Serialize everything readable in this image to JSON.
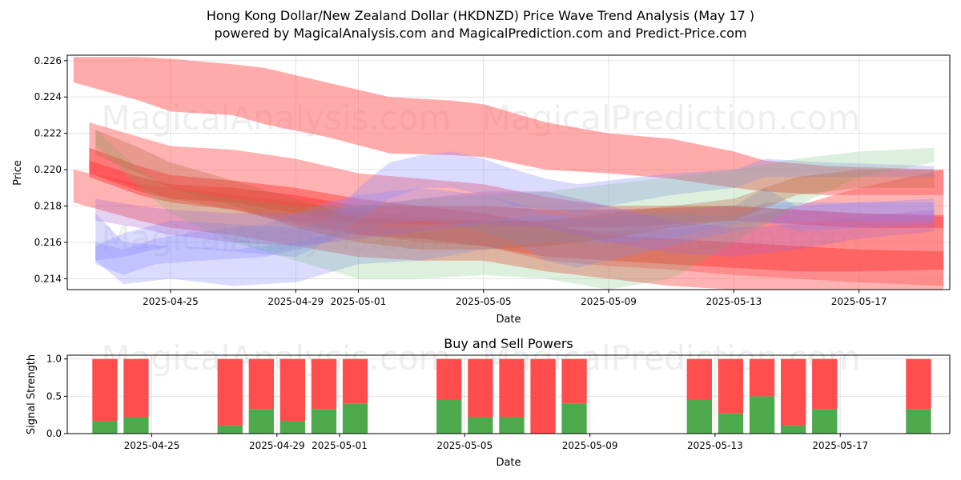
{
  "chart_data": [
    {
      "type": "area",
      "title_line1": "Hong Kong Dollar/New Zealand Dollar (HKDNZD) Price Wave Trend Analysis (May 17 )",
      "title_line2": "powered by MagicalAnalysis.com and MagicalPrediction.com and Predict-Price.com",
      "xlabel": "Date",
      "ylabel": "Price",
      "ylim": [
        0.2134,
        0.2263
      ],
      "x_range_days": [
        -3.3,
        24.9
      ],
      "x_origin_date": "2025-04-25",
      "x_ticks": [
        {
          "day": 0,
          "label": "2025-04-25"
        },
        {
          "day": 4,
          "label": "2025-04-29"
        },
        {
          "day": 6,
          "label": "2025-05-01"
        },
        {
          "day": 10,
          "label": "2025-05-05"
        },
        {
          "day": 14,
          "label": "2025-05-09"
        },
        {
          "day": 18,
          "label": "2025-05-13"
        },
        {
          "day": 22,
          "label": "2025-05-17"
        }
      ],
      "y_ticks": [
        {
          "value": 0.214,
          "label": "0.214"
        },
        {
          "value": 0.216,
          "label": "0.216"
        },
        {
          "value": 0.218,
          "label": "0.218"
        },
        {
          "value": 0.22,
          "label": "0.220"
        },
        {
          "value": 0.222,
          "label": "0.222"
        },
        {
          "value": 0.224,
          "label": "0.224"
        },
        {
          "value": 0.226,
          "label": "0.226"
        }
      ],
      "watermarks": [
        "MagicalAnalysis.com",
        "MagicalPrediction.com"
      ],
      "bands": [
        {
          "color": "#ff6666",
          "opacity": 0.55,
          "x": [
            -3.1,
            -1,
            0,
            2,
            3,
            5,
            7,
            9,
            10,
            12,
            14,
            16,
            18,
            19,
            21,
            24.7
          ],
          "upper": [
            0.2262,
            0.2262,
            0.2261,
            0.2258,
            0.2256,
            0.2248,
            0.224,
            0.2238,
            0.2236,
            0.2226,
            0.222,
            0.2217,
            0.221,
            0.2205,
            0.2202,
            0.22
          ],
          "lower": [
            0.2248,
            0.2238,
            0.2232,
            0.223,
            0.2225,
            0.2218,
            0.2209,
            0.2208,
            0.2207,
            0.22,
            0.2198,
            0.2195,
            0.219,
            0.2188,
            0.2186,
            0.2186
          ]
        },
        {
          "color": "#ff6666",
          "opacity": 0.5,
          "x": [
            -2.6,
            -1,
            0,
            2,
            4,
            6,
            8,
            10,
            12,
            14,
            16,
            18,
            20,
            22,
            24.7
          ],
          "upper": [
            0.2226,
            0.2218,
            0.2213,
            0.2211,
            0.2206,
            0.2198,
            0.2195,
            0.2192,
            0.2185,
            0.218,
            0.218,
            0.218,
            0.2178,
            0.2176,
            0.2174
          ],
          "lower": [
            0.2198,
            0.219,
            0.2184,
            0.2178,
            0.2172,
            0.2165,
            0.216,
            0.2158,
            0.215,
            0.2147,
            0.2145,
            0.2142,
            0.214,
            0.2138,
            0.2136
          ]
        },
        {
          "color": "#ff6666",
          "opacity": 0.5,
          "x": [
            -3.1,
            -1,
            0,
            2,
            4,
            6,
            8,
            10,
            12,
            14,
            16,
            18,
            20,
            22,
            24.7
          ],
          "upper": [
            0.22,
            0.2192,
            0.219,
            0.2186,
            0.2182,
            0.2178,
            0.2174,
            0.2172,
            0.2168,
            0.2166,
            0.2167,
            0.2172,
            0.218,
            0.219,
            0.22
          ],
          "lower": [
            0.2182,
            0.2172,
            0.2168,
            0.2164,
            0.2158,
            0.2152,
            0.215,
            0.215,
            0.2144,
            0.214,
            0.2136,
            0.2134,
            0.2133,
            0.2133,
            0.2133
          ]
        },
        {
          "color": "#ff3333",
          "opacity": 0.45,
          "x": [
            -2.6,
            -1,
            0,
            2,
            4,
            6,
            8,
            10,
            12,
            14,
            16,
            18,
            20,
            22,
            24.7
          ],
          "upper": [
            0.2212,
            0.2202,
            0.2197,
            0.2194,
            0.219,
            0.2184,
            0.218,
            0.2176,
            0.217,
            0.2164,
            0.2162,
            0.216,
            0.2158,
            0.2156,
            0.2155
          ],
          "lower": [
            0.2196,
            0.2186,
            0.2182,
            0.2178,
            0.217,
            0.2164,
            0.2162,
            0.2158,
            0.2152,
            0.215,
            0.2148,
            0.2146,
            0.2144,
            0.2144,
            0.2145
          ]
        },
        {
          "color": "#ff3333",
          "opacity": 0.45,
          "x": [
            -2.6,
            -1,
            0,
            2,
            4,
            6,
            8,
            10,
            12,
            14,
            16,
            18,
            20,
            22,
            24.7
          ],
          "upper": [
            0.2205,
            0.2196,
            0.2192,
            0.219,
            0.2186,
            0.218,
            0.218,
            0.218,
            0.2178,
            0.2178,
            0.2179,
            0.218,
            0.2178,
            0.2176,
            0.2175
          ],
          "lower": [
            0.2198,
            0.2188,
            0.2184,
            0.2182,
            0.2176,
            0.217,
            0.217,
            0.217,
            0.2168,
            0.2168,
            0.217,
            0.2172,
            0.217,
            0.2168,
            0.2168
          ]
        },
        {
          "color": "#8888ff",
          "opacity": 0.3,
          "x": [
            -2.4,
            -1.5,
            0,
            2,
            4,
            5,
            6,
            7,
            8,
            9,
            10,
            11,
            12,
            13,
            14,
            16,
            18,
            19,
            21,
            24.4
          ],
          "upper": [
            0.2158,
            0.2165,
            0.2172,
            0.217,
            0.2168,
            0.2172,
            0.219,
            0.2204,
            0.2208,
            0.221,
            0.2206,
            0.22,
            0.2195,
            0.2192,
            0.2194,
            0.2198,
            0.22,
            0.2206,
            0.2204,
            0.2202
          ],
          "lower": [
            0.215,
            0.2152,
            0.2158,
            0.2155,
            0.2152,
            0.216,
            0.2172,
            0.2184,
            0.219,
            0.219,
            0.2186,
            0.218,
            0.2178,
            0.2176,
            0.218,
            0.2186,
            0.219,
            0.2196,
            0.2196,
            0.2196
          ]
        },
        {
          "color": "#8888ff",
          "opacity": 0.3,
          "x": [
            -2.4,
            -1.5,
            -0.5,
            1,
            3,
            5,
            6,
            7,
            8,
            9,
            10,
            11,
            12,
            13,
            14,
            16,
            18,
            19,
            21,
            24.4
          ],
          "upper": [
            0.216,
            0.2156,
            0.2162,
            0.2166,
            0.217,
            0.2182,
            0.2186,
            0.2188,
            0.219,
            0.2188,
            0.2186,
            0.2182,
            0.2176,
            0.2172,
            0.2174,
            0.2176,
            0.2174,
            0.2182,
            0.2182,
            0.2182
          ],
          "lower": [
            0.2148,
            0.2142,
            0.2148,
            0.215,
            0.2152,
            0.216,
            0.2166,
            0.217,
            0.2172,
            0.217,
            0.2166,
            0.216,
            0.215,
            0.2146,
            0.215,
            0.2158,
            0.2166,
            0.217,
            0.2172,
            0.2172
          ]
        },
        {
          "color": "#8888ff",
          "opacity": 0.3,
          "x": [
            -2.4,
            -1.5,
            0,
            2,
            4,
            6,
            8,
            10,
            12,
            14,
            16,
            18,
            19,
            20,
            22,
            24.4
          ],
          "upper": [
            0.2176,
            0.216,
            0.2158,
            0.2156,
            0.216,
            0.2168,
            0.2168,
            0.2172,
            0.2175,
            0.2178,
            0.2178,
            0.218,
            0.219,
            0.218,
            0.2182,
            0.2184
          ],
          "lower": [
            0.215,
            0.2137,
            0.214,
            0.2136,
            0.2138,
            0.2148,
            0.215,
            0.2156,
            0.216,
            0.216,
            0.2162,
            0.217,
            0.2172,
            0.2166,
            0.2168,
            0.217
          ]
        },
        {
          "color": "#66bb66",
          "opacity": 0.22,
          "x": [
            -2.4,
            -1,
            0,
            2,
            4,
            6,
            8,
            10,
            12,
            14,
            16,
            18,
            20,
            22,
            24.4
          ],
          "upper": [
            0.2222,
            0.22,
            0.219,
            0.2184,
            0.218,
            0.218,
            0.2184,
            0.2186,
            0.2188,
            0.2192,
            0.2196,
            0.22,
            0.2206,
            0.221,
            0.2212
          ],
          "lower": [
            0.2214,
            0.219,
            0.2176,
            0.216,
            0.215,
            0.214,
            0.214,
            0.2142,
            0.214,
            0.2134,
            0.214,
            0.216,
            0.218,
            0.2196,
            0.2204
          ]
        },
        {
          "color": "#bb6644",
          "opacity": 0.32,
          "x": [
            -2.4,
            -1,
            0,
            2,
            4,
            6,
            8,
            10,
            12,
            14,
            16,
            18,
            20,
            22,
            24.4
          ],
          "upper": [
            0.2222,
            0.2212,
            0.2204,
            0.2194,
            0.2184,
            0.2174,
            0.2172,
            0.2172,
            0.2172,
            0.2176,
            0.218,
            0.2184,
            0.2196,
            0.22,
            0.22
          ],
          "lower": [
            0.2208,
            0.2198,
            0.219,
            0.218,
            0.2168,
            0.216,
            0.2156,
            0.2156,
            0.2158,
            0.2162,
            0.2168,
            0.2172,
            0.2186,
            0.219,
            0.219
          ]
        },
        {
          "color": "#aa66cc",
          "opacity": 0.3,
          "x": [
            -2.4,
            -1,
            0,
            2,
            4,
            6,
            8,
            10,
            12,
            14,
            16,
            18,
            20,
            22,
            24.4
          ],
          "upper": [
            0.2184,
            0.218,
            0.2178,
            0.2176,
            0.2176,
            0.218,
            0.2184,
            0.2188,
            0.2188,
            0.218,
            0.2172,
            0.2168,
            0.217,
            0.2174,
            0.2178
          ],
          "lower": [
            0.2172,
            0.2168,
            0.2164,
            0.216,
            0.2158,
            0.2162,
            0.2166,
            0.217,
            0.2168,
            0.216,
            0.2154,
            0.2152,
            0.2156,
            0.2162,
            0.2166
          ]
        }
      ]
    },
    {
      "type": "bar",
      "title": "Buy and Sell Powers",
      "xlabel": "Date",
      "ylabel": "Signal Strength",
      "ylim": [
        0,
        1.05
      ],
      "x_range_days": [
        -3.3,
        24.9
      ],
      "y_ticks": [
        {
          "value": 0.0,
          "label": "0.0"
        },
        {
          "value": 0.5,
          "label": "0.5"
        },
        {
          "value": 1.0,
          "label": "1.0"
        }
      ],
      "x_ticks": [
        {
          "day": 0,
          "label": "2025-04-25"
        },
        {
          "day": 4,
          "label": "2025-04-29"
        },
        {
          "day": 6,
          "label": "2025-05-01"
        },
        {
          "day": 10,
          "label": "2025-05-05"
        },
        {
          "day": 14,
          "label": "2025-05-09"
        },
        {
          "day": 18,
          "label": "2025-05-13"
        },
        {
          "day": 22,
          "label": "2025-05-17"
        }
      ],
      "buy_color": "#4caa4c",
      "sell_color": "#ff4d4d",
      "bars": [
        {
          "day": -1.5,
          "buy": 0.17,
          "sell": 0.83
        },
        {
          "day": -0.5,
          "buy": 0.22,
          "sell": 0.78
        },
        {
          "day": 2.5,
          "buy": 0.11,
          "sell": 0.89
        },
        {
          "day": 3.5,
          "buy": 0.33,
          "sell": 0.67
        },
        {
          "day": 4.5,
          "buy": 0.17,
          "sell": 0.83
        },
        {
          "day": 5.5,
          "buy": 0.33,
          "sell": 0.67
        },
        {
          "day": 6.5,
          "buy": 0.4,
          "sell": 0.6
        },
        {
          "day": 9.5,
          "buy": 0.45,
          "sell": 0.55
        },
        {
          "day": 10.5,
          "buy": 0.22,
          "sell": 0.78
        },
        {
          "day": 11.5,
          "buy": 0.22,
          "sell": 0.78
        },
        {
          "day": 12.5,
          "buy": 0.0,
          "sell": 1.0
        },
        {
          "day": 13.5,
          "buy": 0.4,
          "sell": 0.6
        },
        {
          "day": 17.5,
          "buy": 0.45,
          "sell": 0.55
        },
        {
          "day": 18.5,
          "buy": 0.27,
          "sell": 0.73
        },
        {
          "day": 19.5,
          "buy": 0.5,
          "sell": 0.5
        },
        {
          "day": 20.5,
          "buy": 0.11,
          "sell": 0.89
        },
        {
          "day": 21.5,
          "buy": 0.33,
          "sell": 0.67
        },
        {
          "day": 24.5,
          "buy": 0.33,
          "sell": 0.67
        }
      ]
    }
  ]
}
